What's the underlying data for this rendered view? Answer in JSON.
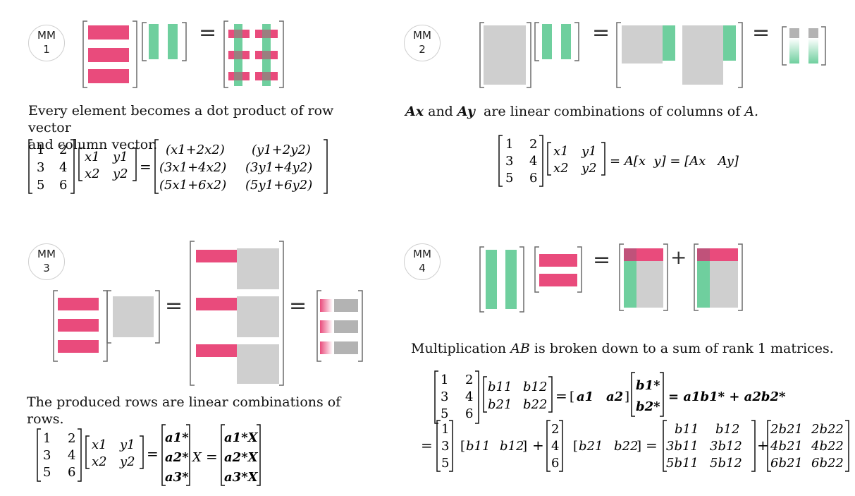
{
  "colors": {
    "row": "#e94b7c",
    "col": "#6fcf9e",
    "gray": "#cfcfcf",
    "darkgray": "#b3b3b3",
    "overlap": "#9a7f7f",
    "bracket": "#6b6b6b"
  },
  "panels": [
    {
      "badge": {
        "line1": "MM",
        "line2": "1"
      },
      "caption_lines": [
        "Every element becomes a dot product of row vector",
        "and column vector."
      ],
      "eq": {
        "A": [
          [
            "1",
            "2"
          ],
          [
            "3",
            "4"
          ],
          [
            "5",
            "6"
          ]
        ],
        "X": [
          [
            "x1",
            "y1"
          ],
          [
            "x2",
            "y2"
          ]
        ],
        "R": [
          [
            "(x1+2x2)",
            "(y1+2y2)"
          ],
          [
            "(3x1+4x2)",
            "(3y1+4y2)"
          ],
          [
            "(5x1+6x2)",
            "(5y1+6y2)"
          ]
        ]
      }
    },
    {
      "badge": {
        "line1": "MM",
        "line2": "2"
      },
      "caption_parts": {
        "ax": "Ax",
        "and": " and ",
        "ay": "Ay",
        "rest": "  are linear combinations of columns of ",
        "A": "A."
      },
      "eq": {
        "rhs1": "= A[x  y] = [Ax   Ay]"
      }
    },
    {
      "badge": {
        "line1": "MM",
        "line2": "3"
      },
      "caption": "The produced rows are linear combinations of rows.",
      "eq": {
        "a_rows": [
          "a1*",
          "a2*",
          "a3*"
        ],
        "aX_rows": [
          "a1*X",
          "a2*X",
          "a3*X"
        ],
        "X": "X"
      }
    },
    {
      "badge": {
        "line1": "MM",
        "line2": "4"
      },
      "caption_parts": {
        "pre": "Multiplication ",
        "AB": "AB",
        "rest": " is broken down to a sum of rank 1 matrices."
      },
      "eq": {
        "B": [
          [
            "b11",
            "b12"
          ],
          [
            "b21",
            "b22"
          ]
        ],
        "cols": [
          "a1",
          "a2"
        ],
        "rows": [
          "b1*",
          "b2*"
        ],
        "sum": "= a1b1* + a2b2*",
        "col1": [
          "1",
          "3",
          "5"
        ],
        "col2": [
          "2",
          "4",
          "6"
        ],
        "row1": [
          "b11",
          "b12"
        ],
        "row2": [
          "b21",
          "b22"
        ],
        "R1": [
          [
            "b11",
            "b12"
          ],
          [
            "3b11",
            "3b12"
          ],
          [
            "5b11",
            "5b12"
          ]
        ],
        "R2": [
          [
            "2b21",
            "2b22"
          ],
          [
            "4b21",
            "4b22"
          ],
          [
            "6b21",
            "6b22"
          ]
        ]
      }
    }
  ]
}
